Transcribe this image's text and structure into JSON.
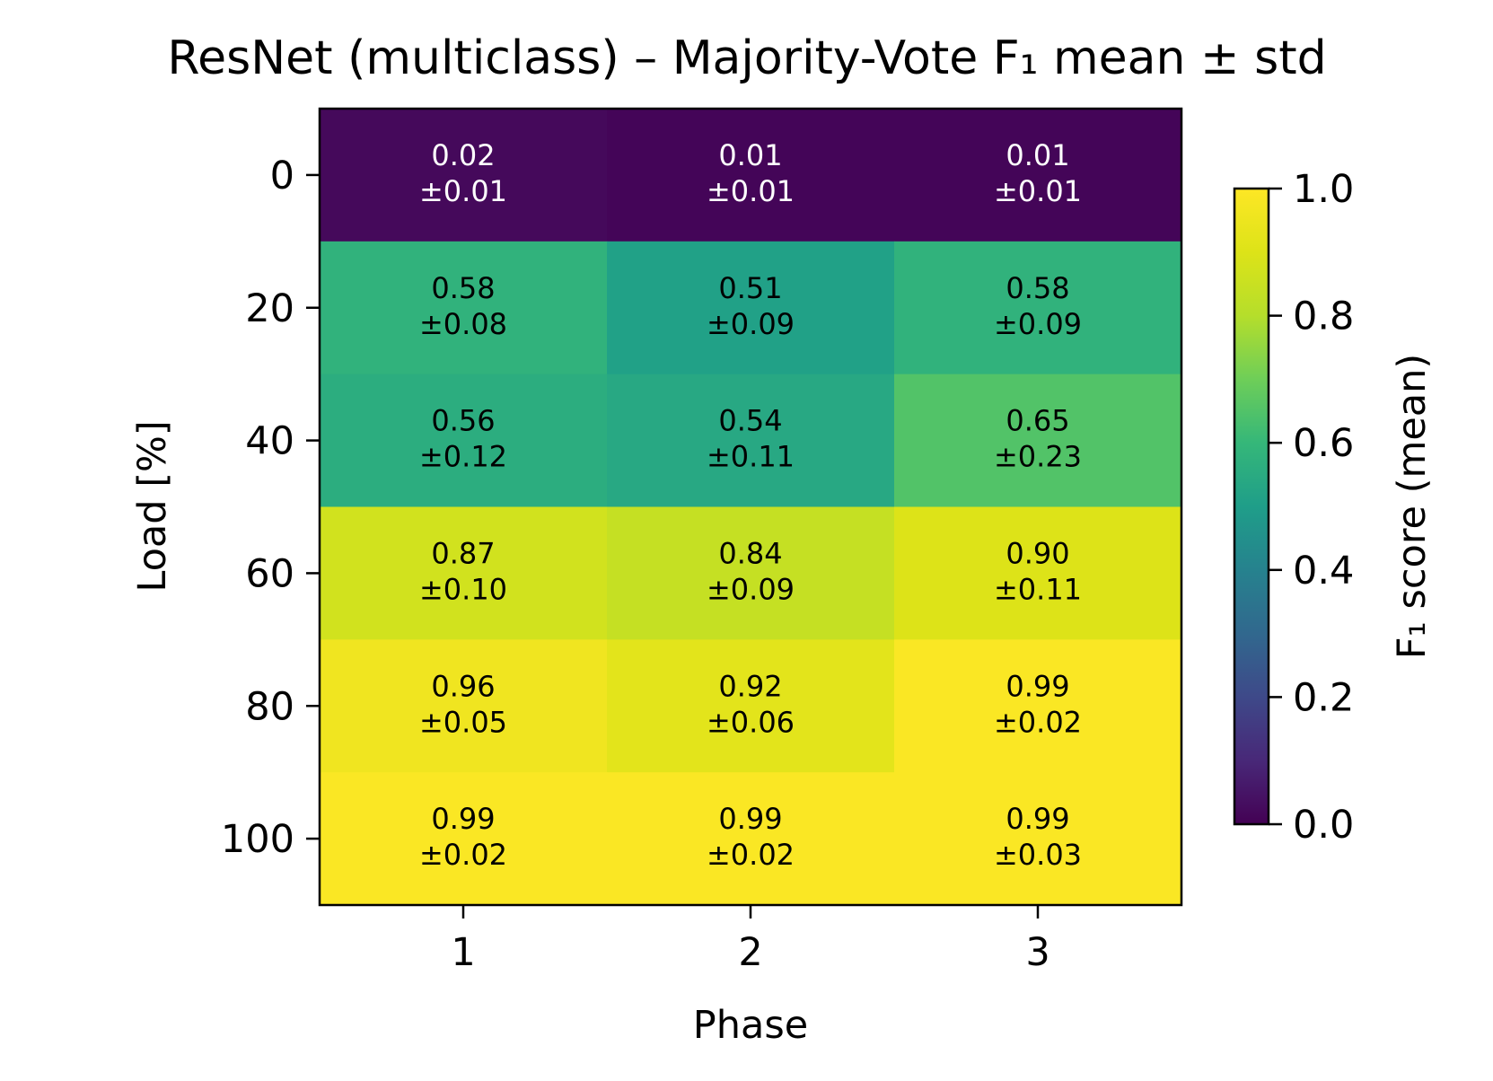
{
  "chart_data": {
    "type": "heatmap",
    "title": "ResNet (multiclass) – Majority-Vote F₁ mean ± std",
    "xlabel": "Phase",
    "ylabel": "Load [%]",
    "x_categories": [
      "1",
      "2",
      "3"
    ],
    "y_categories": [
      "0",
      "20",
      "40",
      "60",
      "80",
      "100"
    ],
    "values": [
      [
        0.02,
        0.01,
        0.01
      ],
      [
        0.58,
        0.51,
        0.58
      ],
      [
        0.56,
        0.54,
        0.65
      ],
      [
        0.87,
        0.84,
        0.9
      ],
      [
        0.96,
        0.92,
        0.99
      ],
      [
        0.99,
        0.99,
        0.99
      ]
    ],
    "std": [
      [
        0.01,
        0.01,
        0.01
      ],
      [
        0.08,
        0.09,
        0.09
      ],
      [
        0.12,
        0.11,
        0.23
      ],
      [
        0.1,
        0.09,
        0.11
      ],
      [
        0.05,
        0.06,
        0.02
      ],
      [
        0.02,
        0.02,
        0.03
      ]
    ],
    "colorbar": {
      "label": "F₁ score (mean)",
      "range": [
        0.0,
        1.0
      ],
      "ticks": [
        "0.0",
        "0.2",
        "0.4",
        "0.6",
        "0.8",
        "1.0"
      ],
      "colormap": "viridis"
    }
  }
}
